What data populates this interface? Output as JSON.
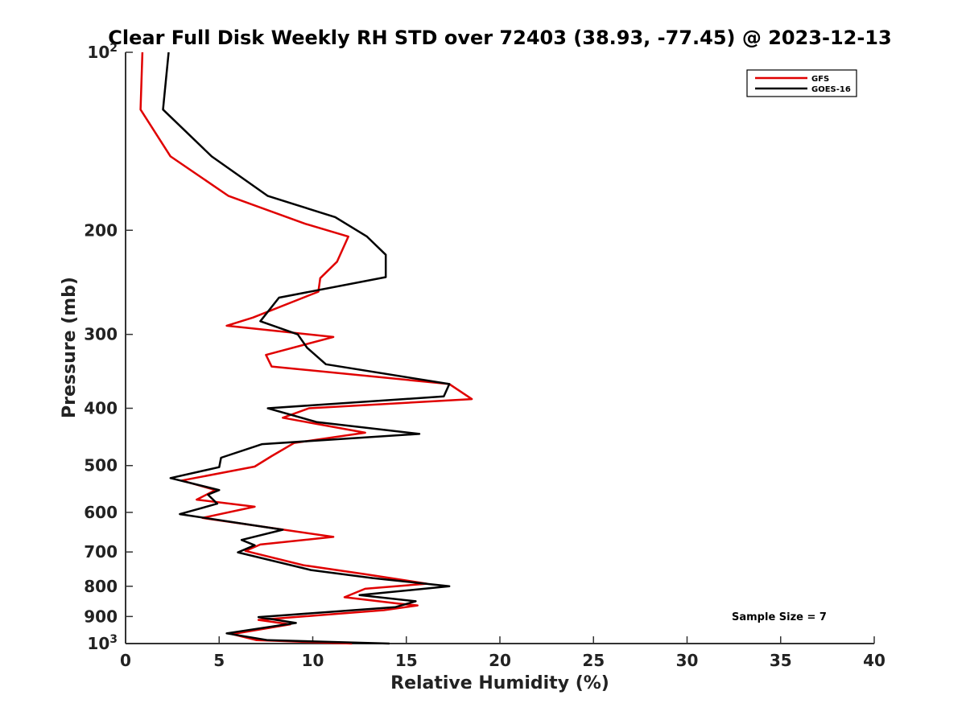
{
  "chart_data": {
    "type": "line",
    "title": "Clear Full Disk Weekly RH STD over 72403 (38.93, -77.45) @ 2023-12-13",
    "xlabel": "Relative Humidity (%)",
    "ylabel": "Pressure (mb)",
    "xlim": [
      0,
      40
    ],
    "ylim": [
      100,
      1000
    ],
    "y_scale": "log",
    "y_reversed": true,
    "x_ticks": [
      0,
      5,
      10,
      15,
      20,
      25,
      30,
      35,
      40
    ],
    "y_ticks": [
      {
        "value": 100,
        "label": "10",
        "exp": "2"
      },
      {
        "value": 200,
        "label": "200"
      },
      {
        "value": 300,
        "label": "300"
      },
      {
        "value": 400,
        "label": "400"
      },
      {
        "value": 500,
        "label": "500"
      },
      {
        "value": 600,
        "label": "600"
      },
      {
        "value": 700,
        "label": "700"
      },
      {
        "value": 800,
        "label": "800"
      },
      {
        "value": 900,
        "label": "900"
      },
      {
        "value": 1000,
        "label": "10",
        "exp": "3"
      }
    ],
    "grid": false,
    "legend_position": "top-right",
    "annotation": "Sample Size = 7",
    "series": [
      {
        "name": "GFS",
        "color": "#e00000",
        "points": [
          [
            0.9,
            100
          ],
          [
            0.8,
            125
          ],
          [
            2.4,
            150
          ],
          [
            5.5,
            175
          ],
          [
            9.6,
            195
          ],
          [
            11.9,
            205
          ],
          [
            11.3,
            226
          ],
          [
            10.4,
            241
          ],
          [
            10.3,
            254
          ],
          [
            6.8,
            281
          ],
          [
            5.4,
            290
          ],
          [
            11.1,
            303
          ],
          [
            7.5,
            325
          ],
          [
            7.8,
            340
          ],
          [
            17.3,
            364
          ],
          [
            18.5,
            386
          ],
          [
            9.8,
            400
          ],
          [
            8.4,
            415
          ],
          [
            12.8,
            440
          ],
          [
            9.0,
            458
          ],
          [
            7.8,
            482
          ],
          [
            6.9,
            502
          ],
          [
            3.0,
            530
          ],
          [
            4.8,
            550
          ],
          [
            3.8,
            571
          ],
          [
            6.9,
            587
          ],
          [
            4.1,
            613
          ],
          [
            11.1,
            660
          ],
          [
            7.2,
            680
          ],
          [
            6.4,
            697
          ],
          [
            9.5,
            737
          ],
          [
            12.9,
            764
          ],
          [
            16.1,
            792
          ],
          [
            12.8,
            808
          ],
          [
            11.7,
            835
          ],
          [
            14.6,
            856
          ],
          [
            15.6,
            862
          ],
          [
            13.8,
            878
          ],
          [
            7.1,
            912
          ],
          [
            8.8,
            928
          ],
          [
            5.7,
            964
          ],
          [
            7.0,
            987
          ],
          [
            12.1,
            1000
          ]
        ]
      },
      {
        "name": "GOES-16",
        "color": "#000000",
        "points": [
          [
            2.3,
            100
          ],
          [
            2.0,
            125
          ],
          [
            4.6,
            150
          ],
          [
            7.6,
            175
          ],
          [
            11.2,
            190
          ],
          [
            12.9,
            205
          ],
          [
            13.9,
            220
          ],
          [
            13.9,
            240
          ],
          [
            8.2,
            260
          ],
          [
            7.2,
            285
          ],
          [
            9.2,
            300
          ],
          [
            9.7,
            316
          ],
          [
            10.7,
            337
          ],
          [
            17.3,
            364
          ],
          [
            17.0,
            382
          ],
          [
            7.6,
            400
          ],
          [
            10.2,
            422
          ],
          [
            15.7,
            442
          ],
          [
            7.3,
            460
          ],
          [
            5.1,
            485
          ],
          [
            5.0,
            503
          ],
          [
            2.4,
            525
          ],
          [
            5.0,
            550
          ],
          [
            4.4,
            560
          ],
          [
            4.9,
            580
          ],
          [
            2.9,
            604
          ],
          [
            8.4,
            642
          ],
          [
            6.2,
            668
          ],
          [
            6.9,
            682
          ],
          [
            6.0,
            701
          ],
          [
            9.9,
            751
          ],
          [
            13.2,
            775
          ],
          [
            17.3,
            800
          ],
          [
            12.5,
            828
          ],
          [
            15.5,
            848
          ],
          [
            14.4,
            868
          ],
          [
            7.1,
            902
          ],
          [
            9.1,
            923
          ],
          [
            5.4,
            961
          ],
          [
            7.6,
            987
          ],
          [
            14.1,
            1000
          ]
        ]
      }
    ]
  }
}
